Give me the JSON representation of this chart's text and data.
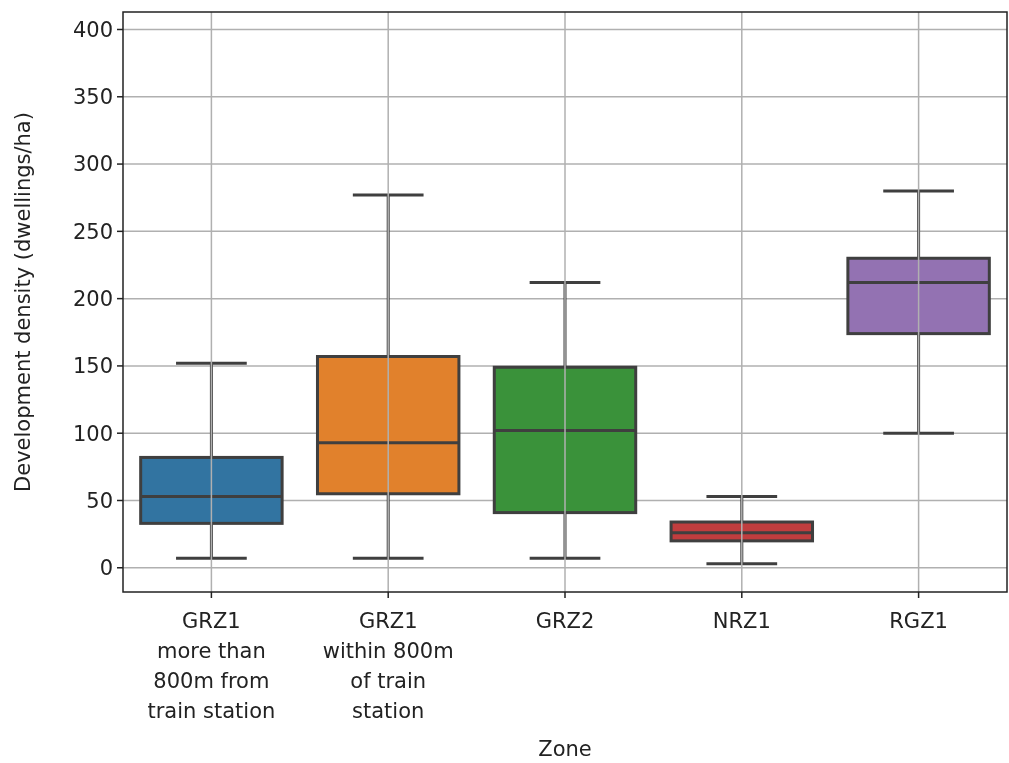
{
  "chart_data": {
    "type": "box",
    "xlabel": "Zone",
    "ylabel": "Development density (dwellings/ha)",
    "categories": [
      "GRZ1\nmore than\n800m from\ntrain station",
      "GRZ1\nwithin 800m\nof train\nstation",
      "GRZ2",
      "NRZ1",
      "RGZ1"
    ],
    "colors": [
      "#3274a1",
      "#e1812c",
      "#3a923a",
      "#c03d3e",
      "#9372b2"
    ],
    "boxes": [
      {
        "low": 7,
        "q1": 33,
        "median": 53,
        "q3": 82,
        "high": 152
      },
      {
        "low": 7,
        "q1": 55,
        "median": 93,
        "q3": 157,
        "high": 277
      },
      {
        "low": 7,
        "q1": 41,
        "median": 102,
        "q3": 149,
        "high": 212
      },
      {
        "low": 3,
        "q1": 20,
        "median": 26,
        "q3": 34,
        "high": 53
      },
      {
        "low": 100,
        "q1": 174,
        "median": 212,
        "q3": 230,
        "high": 280
      }
    ],
    "ylim": [
      -18,
      413
    ],
    "yticks": [
      0,
      50,
      100,
      150,
      200,
      250,
      300,
      350,
      400
    ],
    "grid": true
  }
}
